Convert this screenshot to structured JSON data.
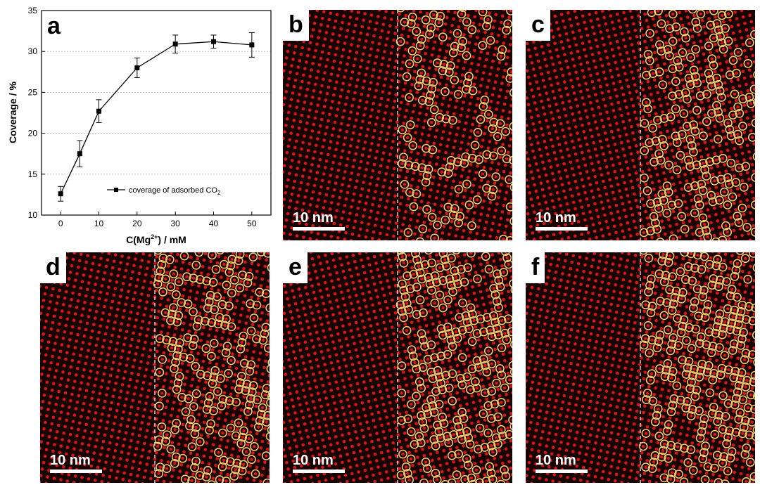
{
  "panel_a": {
    "label": "a",
    "chart_data": {
      "type": "line",
      "title": "",
      "xlabel": "C(Mg2+) / mM",
      "xlabel_main": "C(Mg",
      "xlabel_sup": "2+",
      "xlabel_end": ") / mM",
      "ylabel": "Coverage / %",
      "xlim": [
        -5,
        55
      ],
      "ylim": [
        10,
        35
      ],
      "xticks": [
        "0",
        "10",
        "20",
        "30",
        "40",
        "50"
      ],
      "yticks": [
        "10",
        "15",
        "20",
        "25",
        "30",
        "35"
      ],
      "grid": "horizontal dashed",
      "legend_position": "bottom-right",
      "legend_text": "coverage of adsorbed CO",
      "legend_sub": "2",
      "series": [
        {
          "name": "coverage of adsorbed CO2",
          "x": [
            0,
            5,
            10,
            20,
            30,
            40,
            50
          ],
          "y": [
            12.6,
            17.5,
            22.7,
            28.0,
            30.9,
            31.2,
            30.8
          ],
          "err": [
            0.9,
            1.6,
            1.4,
            1.2,
            1.1,
            0.8,
            1.5
          ]
        }
      ]
    }
  },
  "stm_panels": [
    {
      "label": "b",
      "scale": "10 nm",
      "density": 0.26,
      "seed": 11
    },
    {
      "label": "c",
      "scale": "10 nm",
      "density": 0.3,
      "seed": 23
    },
    {
      "label": "d",
      "scale": "10 nm",
      "density": 0.34,
      "seed": 37
    },
    {
      "label": "e",
      "scale": "10 nm",
      "density": 0.38,
      "seed": 41
    },
    {
      "label": "f",
      "scale": "10 nm",
      "density": 0.38,
      "seed": 59
    }
  ],
  "colors": {
    "background_dark": "#180403",
    "atom_red": "#d81818",
    "circle_yellow": "#f2c66b",
    "divider": "#ffffff"
  }
}
